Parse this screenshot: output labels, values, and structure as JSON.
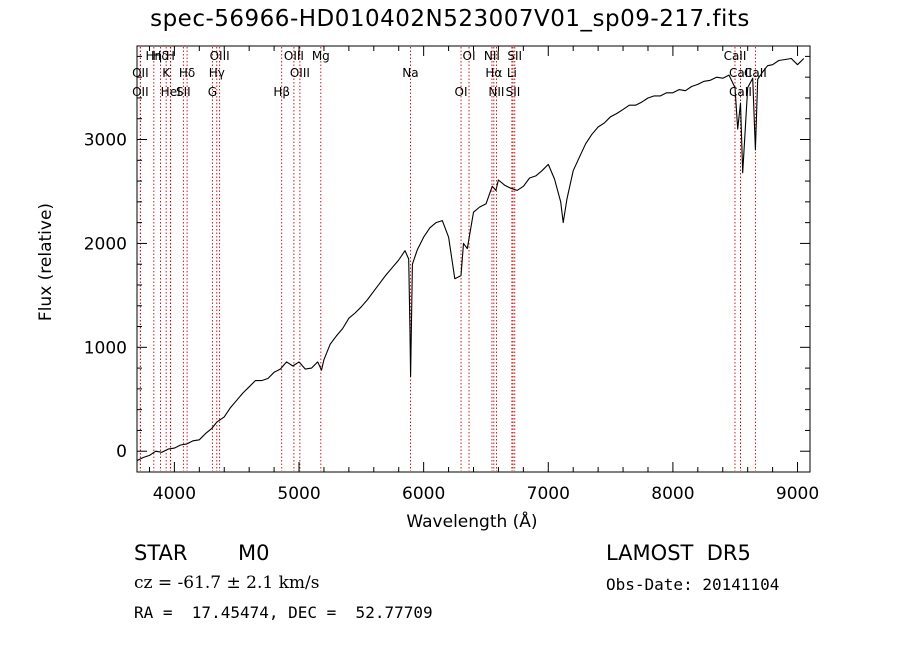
{
  "chart_data": {
    "type": "line",
    "title": "spec-56966-HD010402N523007V01_sp09-217.fits",
    "xlabel": "Wavelength (Å)",
    "ylabel": "Flux (relative)",
    "xlim": [
      3700,
      9100
    ],
    "ylim": [
      -200,
      3900
    ],
    "x_ticks": [
      4000,
      5000,
      6000,
      7000,
      8000,
      9000
    ],
    "y_ticks": [
      0,
      1000,
      2000,
      3000
    ],
    "grid": false,
    "series": [
      {
        "x": [
          3700,
          3750,
          3800,
          3850,
          3900,
          3950,
          4000,
          4050,
          4100,
          4150,
          4200,
          4250,
          4300,
          4340,
          4400,
          4450,
          4500,
          4550,
          4600,
          4650,
          4700,
          4750,
          4800,
          4850,
          4900,
          4950,
          5000,
          5050,
          5100,
          5150,
          5180,
          5200,
          5250,
          5300,
          5350,
          5400,
          5450,
          5500,
          5550,
          5600,
          5650,
          5700,
          5750,
          5800,
          5850,
          5880,
          5890,
          5895,
          5910,
          5950,
          6000,
          6050,
          6100,
          6150,
          6200,
          6250,
          6300,
          6320,
          6350,
          6400,
          6450,
          6500,
          6550,
          6580,
          6600,
          6650,
          6700,
          6750,
          6800,
          6850,
          6900,
          6950,
          7000,
          7050,
          7100,
          7120,
          7150,
          7200,
          7250,
          7300,
          7350,
          7400,
          7450,
          7500,
          7550,
          7600,
          7650,
          7700,
          7750,
          7800,
          7850,
          7900,
          7950,
          8000,
          8050,
          8100,
          8150,
          8200,
          8250,
          8300,
          8350,
          8400,
          8450,
          8498,
          8520,
          8542,
          8560,
          8600,
          8640,
          8662,
          8680,
          8720,
          8760,
          8800,
          8850,
          8900,
          8950,
          9000,
          9050
        ],
        "y": [
          -90,
          -60,
          -40,
          0,
          -10,
          20,
          30,
          60,
          70,
          100,
          110,
          170,
          220,
          280,
          330,
          420,
          490,
          560,
          620,
          680,
          680,
          700,
          760,
          790,
          860,
          820,
          860,
          790,
          800,
          860,
          780,
          880,
          1030,
          1110,
          1180,
          1280,
          1330,
          1390,
          1460,
          1540,
          1620,
          1700,
          1770,
          1840,
          1930,
          1850,
          1200,
          720,
          1800,
          1940,
          2060,
          2150,
          2200,
          2220,
          2060,
          1660,
          1690,
          2000,
          1950,
          2300,
          2350,
          2380,
          2550,
          2510,
          2610,
          2560,
          2530,
          2510,
          2550,
          2630,
          2650,
          2700,
          2760,
          2620,
          2400,
          2200,
          2430,
          2700,
          2830,
          2960,
          3050,
          3120,
          3160,
          3220,
          3250,
          3290,
          3330,
          3330,
          3360,
          3400,
          3420,
          3420,
          3450,
          3450,
          3480,
          3470,
          3510,
          3530,
          3560,
          3570,
          3600,
          3590,
          3620,
          3500,
          3100,
          3350,
          2680,
          3500,
          3590,
          2900,
          3580,
          3650,
          3710,
          3720,
          3760,
          3770,
          3780,
          3720,
          3780
        ]
      }
    ],
    "line_annotations": [
      {
        "label": "Hδ",
        "x": 3889
      },
      {
        "label": "OII",
        "x": 3727
      },
      {
        "label": "OII",
        "x": 3727
      },
      {
        "label": "Hη",
        "x": 3835
      },
      {
        "label": "K",
        "x": 3934
      },
      {
        "label": "HeI",
        "x": 3970
      },
      {
        "label": "H",
        "x": 3968
      },
      {
        "label": "Hδ",
        "x": 4102
      },
      {
        "label": "SII",
        "x": 4072
      },
      {
        "label": "OIII",
        "x": 4363
      },
      {
        "label": "Hγ",
        "x": 4340
      },
      {
        "label": "G",
        "x": 4305
      },
      {
        "label": "OIII",
        "x": 4959
      },
      {
        "label": "OIII",
        "x": 5007
      },
      {
        "label": "Hβ",
        "x": 4861
      },
      {
        "label": "Mg",
        "x": 5175
      },
      {
        "label": "Na",
        "x": 5894
      },
      {
        "label": "OI",
        "x": 6300
      },
      {
        "label": "OI",
        "x": 6364
      },
      {
        "label": "Hα",
        "x": 6563
      },
      {
        "label": "SII",
        "x": 6717
      },
      {
        "label": "NII",
        "x": 6548
      },
      {
        "label": "Li",
        "x": 6708
      },
      {
        "label": "NII",
        "x": 6584
      },
      {
        "label": "SII",
        "x": 6731
      },
      {
        "label": "CaII",
        "x": 8662
      },
      {
        "label": "CaII",
        "x": 8542
      },
      {
        "label": "CaII",
        "x": 8498
      },
      {
        "label": "CaII",
        "x": 8542
      }
    ],
    "colors": {
      "spectrum": "#000000",
      "line_markers": "#cc0000"
    }
  },
  "info": {
    "object": "STAR",
    "subclass": "M0",
    "survey": "LAMOST  DR5",
    "cz": "cz = -61.7 ± 2.1 km/s",
    "obs_date": "Obs-Date: 20141104",
    "coords": "RA =  17.45474, DEC =  52.77709"
  }
}
